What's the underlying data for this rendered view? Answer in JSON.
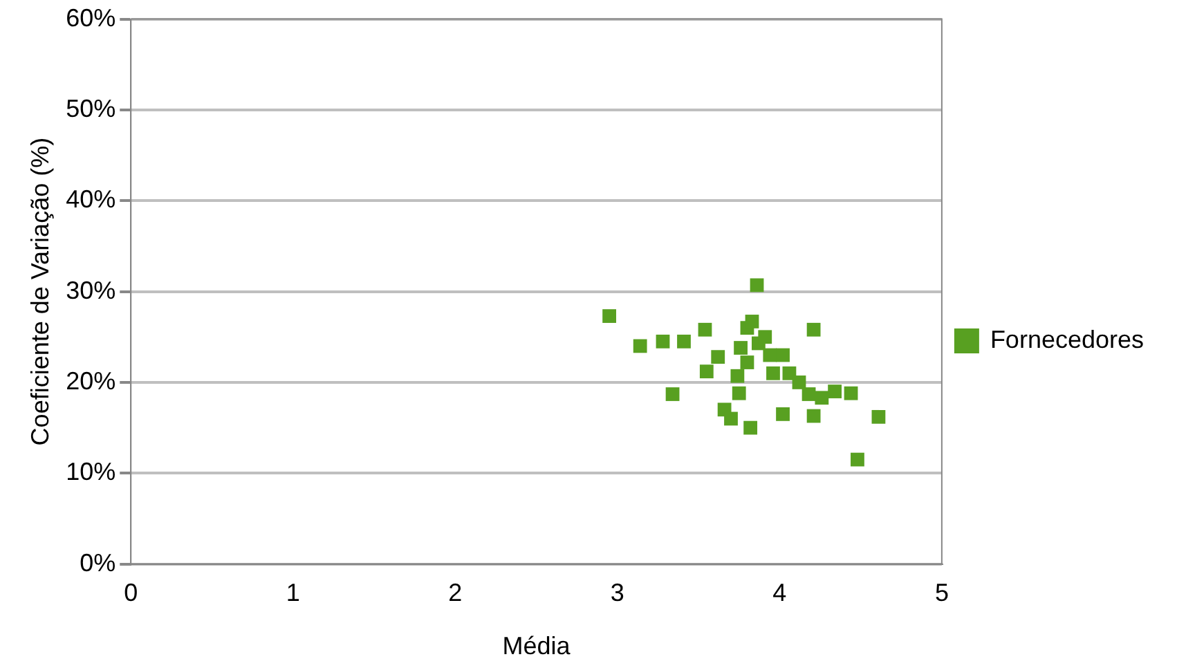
{
  "chart_data": {
    "type": "scatter",
    "xlabel": "Média",
    "ylabel": "Coeficiente de Variação (%)",
    "xlim": [
      0,
      5
    ],
    "xticks": [
      0,
      1,
      2,
      3,
      4,
      5
    ],
    "ylim": [
      0,
      60
    ],
    "yticks": [
      {
        "value": 0,
        "label": "0%"
      },
      {
        "value": 10,
        "label": "10%"
      },
      {
        "value": 20,
        "label": "20%"
      },
      {
        "value": 30,
        "label": "30%"
      },
      {
        "value": 40,
        "label": "40%"
      },
      {
        "value": 50,
        "label": "50%"
      },
      {
        "value": 60,
        "label": "60%"
      }
    ],
    "grid": "y",
    "legend": "right",
    "marker": "square",
    "series": [
      {
        "name": "Fornecedores",
        "color": "#58a021",
        "x": [
          2.95,
          3.14,
          3.28,
          3.41,
          3.34,
          3.54,
          3.55,
          3.62,
          3.66,
          3.7,
          3.74,
          3.75,
          3.76,
          3.8,
          3.82,
          3.8,
          3.86,
          3.87,
          3.94,
          3.96,
          4.02,
          4.02,
          4.06,
          4.12,
          4.18,
          4.21,
          4.21,
          4.26,
          4.34,
          4.44,
          4.48,
          4.61,
          3.83,
          3.91
        ],
        "values": [
          27.3,
          24.0,
          24.5,
          24.5,
          18.7,
          25.8,
          21.2,
          22.8,
          17.0,
          16.0,
          20.7,
          18.8,
          23.8,
          26.0,
          15.0,
          22.2,
          30.7,
          24.3,
          23.0,
          21.0,
          23.0,
          16.5,
          21.0,
          20.0,
          18.7,
          25.8,
          16.3,
          18.3,
          19.0,
          18.8,
          11.5,
          16.2,
          26.7,
          25.0
        ]
      }
    ]
  }
}
